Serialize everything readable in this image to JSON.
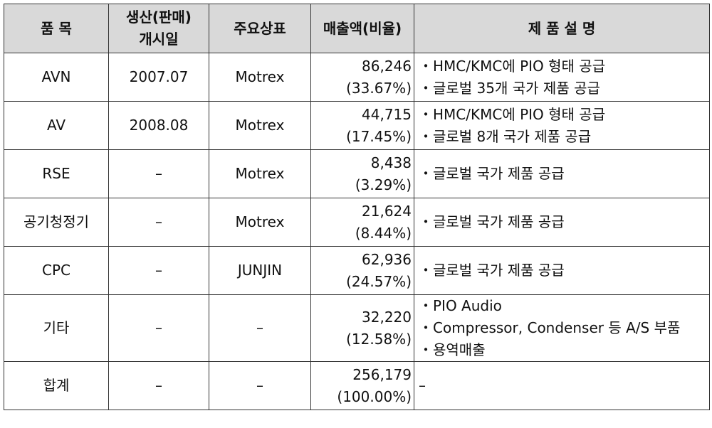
{
  "headers": {
    "item": "품 목",
    "start_line1": "생산(판매)",
    "start_line2": "개시일",
    "brand": "주요상표",
    "sales": "매출액(비율)",
    "desc": "제 품 설 명"
  },
  "rows": [
    {
      "item": "AVN",
      "start": "2007.07",
      "brand": "Motrex",
      "sales": "86,246",
      "ratio": "(33.67%)",
      "desc": [
        "HMC/KMC에 PIO 형태 공급",
        "글로벌 35개 국가 제품 공급"
      ]
    },
    {
      "item": "AV",
      "start": "2008.08",
      "brand": "Motrex",
      "sales": "44,715",
      "ratio": "(17.45%)",
      "desc": [
        "HMC/KMC에 PIO 형태 공급",
        "글로벌 8개 국가 제품 공급"
      ]
    },
    {
      "item": "RSE",
      "start": "–",
      "brand": "Motrex",
      "sales": "8,438",
      "ratio": "(3.29%)",
      "desc": [
        "글로벌 국가 제품 공급"
      ]
    },
    {
      "item": "공기청정기",
      "start": "–",
      "brand": "Motrex",
      "sales": "21,624",
      "ratio": "(8.44%)",
      "desc": [
        "글로벌 국가 제품 공급"
      ]
    },
    {
      "item": "CPC",
      "start": "–",
      "brand": "JUNJIN",
      "sales": "62,936",
      "ratio": "(24.57%)",
      "desc": [
        "글로벌 국가 제품 공급"
      ]
    },
    {
      "item": "기타",
      "start": "–",
      "brand": "–",
      "sales": "32,220",
      "ratio": "(12.58%)",
      "desc": [
        "PIO Audio",
        "Compressor, Condenser 등 A/S 부품",
        "용역매출"
      ]
    }
  ],
  "total": {
    "item": "합계",
    "start": "–",
    "brand": "–",
    "sales": "256,179",
    "ratio": "(100.00%)",
    "desc": "–"
  }
}
